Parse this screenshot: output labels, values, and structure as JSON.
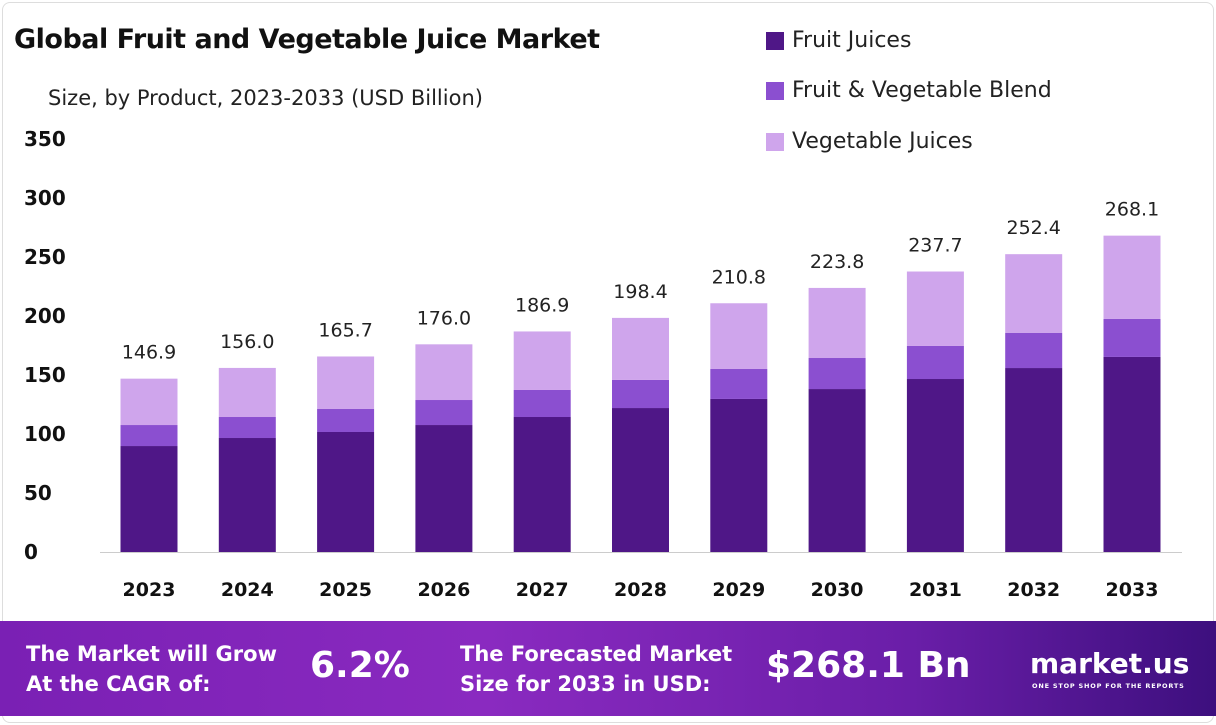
{
  "chart_data": {
    "type": "bar",
    "stacked": true,
    "title": "Global Fruit and Vegetable Juice Market",
    "subtitle": "Size, by Product, 2023-2033 (USD Billion)",
    "categories": [
      "2023",
      "2024",
      "2025",
      "2026",
      "2027",
      "2028",
      "2029",
      "2030",
      "2031",
      "2032",
      "2033"
    ],
    "series": [
      {
        "name": "Fruit Juices",
        "color": "#4f1787",
        "values": [
          89.8,
          96.6,
          101.7,
          107.6,
          114.4,
          122.0,
          129.7,
          138.1,
          146.6,
          155.9,
          165.3
        ]
      },
      {
        "name": "Fruit & Vegetable Blend",
        "color": "#8b4fd0",
        "values": [
          17.8,
          17.8,
          19.5,
          21.2,
          22.9,
          23.8,
          25.4,
          26.3,
          28.0,
          29.7,
          32.2
        ]
      },
      {
        "name": "Vegetable Juices",
        "color": "#cfa5ec",
        "values": [
          39.3,
          41.6,
          44.5,
          47.2,
          49.6,
          52.6,
          55.7,
          59.4,
          63.1,
          66.8,
          70.6
        ]
      }
    ],
    "totals": [
      "146.9",
      "156.0",
      "165.7",
      "176.0",
      "186.9",
      "198.4",
      "210.8",
      "223.8",
      "237.7",
      "252.4",
      "268.1"
    ],
    "yticks": [
      "0",
      "50",
      "100",
      "150",
      "200",
      "250",
      "300",
      "350"
    ],
    "ylim": [
      0,
      350
    ],
    "grid": false,
    "legend_position": "top-right"
  },
  "footer": {
    "cagr_label_1": "The Market will Grow",
    "cagr_label_2": "At the CAGR of:",
    "cagr_value": "6.2%",
    "forecast_label_1": "The Forecasted Market",
    "forecast_label_2": "Size for 2033 in USD:",
    "forecast_value": "$268.1 Bn",
    "brand": "market.us",
    "tagline": "ONE STOP SHOP FOR THE REPORTS"
  }
}
